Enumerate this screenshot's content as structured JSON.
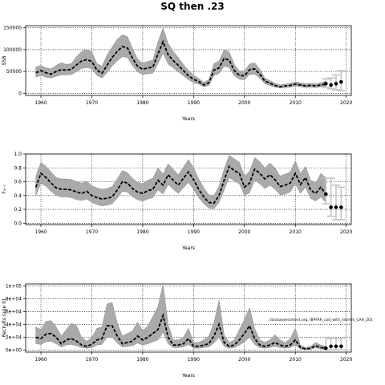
{
  "title": "SQ then .23",
  "annotation": "stockassessment.org, IBPFAR_cod_with_interim_CAA_201",
  "chart_data": [
    {
      "type": "line",
      "ylabel": "SSB",
      "xlabel": "Years",
      "xlim": [
        1957,
        2021
      ],
      "ylim": [
        -5000,
        155000
      ],
      "xticks": [
        1960,
        1970,
        1980,
        1990,
        2000,
        2010,
        2020
      ],
      "xtick_labels": [
        "1960",
        "1970",
        "1980",
        "1990",
        "2000",
        "2010",
        "2020"
      ],
      "yticks": [
        0,
        50000,
        100000,
        150000
      ],
      "ytick_labels": [
        "0",
        "50000",
        "100000",
        "150000"
      ],
      "grid": true,
      "years": [
        1959,
        1960,
        1961,
        1962,
        1963,
        1964,
        1965,
        1966,
        1967,
        1968,
        1969,
        1970,
        1971,
        1972,
        1973,
        1974,
        1975,
        1976,
        1977,
        1978,
        1979,
        1980,
        1981,
        1982,
        1983,
        1984,
        1985,
        1986,
        1987,
        1988,
        1989,
        1990,
        1991,
        1992,
        1993,
        1994,
        1995,
        1996,
        1997,
        1998,
        1999,
        2000,
        2001,
        2002,
        2003,
        2004,
        2005,
        2006,
        2007,
        2008,
        2009,
        2010,
        2011,
        2012,
        2013,
        2014,
        2015,
        2016
      ],
      "estimate": [
        47000,
        52000,
        47000,
        44000,
        50000,
        54000,
        53000,
        55000,
        65000,
        74000,
        77000,
        73000,
        53000,
        46000,
        64000,
        82000,
        96000,
        107000,
        104000,
        80000,
        62000,
        55000,
        58000,
        60000,
        90000,
        118000,
        88000,
        75000,
        64000,
        52000,
        40000,
        32000,
        27000,
        19000,
        24000,
        53000,
        58000,
        80000,
        76000,
        52000,
        41000,
        40000,
        54000,
        56000,
        44000,
        28000,
        23000,
        18000,
        15000,
        17000,
        18000,
        21000,
        19000,
        17000,
        18000,
        17000,
        19000,
        21000
      ],
      "upper": [
        60000,
        64000,
        58000,
        56000,
        64000,
        70000,
        66000,
        68000,
        84000,
        96000,
        100000,
        95000,
        68000,
        62000,
        88000,
        106000,
        124000,
        134000,
        130000,
        102000,
        78000,
        69000,
        73000,
        76000,
        118000,
        150000,
        114000,
        96000,
        82000,
        66000,
        52000,
        42000,
        34000,
        25000,
        31000,
        68000,
        74000,
        100000,
        95000,
        66000,
        51000,
        51000,
        67000,
        70000,
        55000,
        35000,
        29000,
        23000,
        19000,
        21000,
        23000,
        26000,
        24000,
        22000,
        23000,
        22000,
        24000,
        28000
      ],
      "lower": [
        37000,
        41000,
        37000,
        35000,
        39000,
        42000,
        42000,
        43000,
        50000,
        57000,
        59000,
        56000,
        41000,
        35000,
        47000,
        63000,
        74000,
        84000,
        82000,
        63000,
        49000,
        43000,
        45000,
        46000,
        68000,
        92000,
        67000,
        58000,
        49000,
        40000,
        31000,
        24000,
        21000,
        15000,
        18000,
        41000,
        45000,
        62000,
        59000,
        40000,
        32000,
        31000,
        43000,
        44000,
        35000,
        22000,
        18000,
        14000,
        12000,
        13000,
        14000,
        17000,
        15000,
        13000,
        14000,
        13000,
        15000,
        16000
      ],
      "forecast": {
        "years": [
          2016,
          2017,
          2018,
          2019
        ],
        "values": [
          22000,
          19000,
          22000,
          26000
        ],
        "upper": [
          33000,
          35000,
          42000,
          52000
        ],
        "lower": [
          14000,
          10000,
          8000,
          6000
        ]
      }
    },
    {
      "type": "line",
      "ylabel": "F₃₋₇",
      "xlabel": "Years",
      "xlim": [
        1957,
        2021
      ],
      "ylim": [
        -0.02,
        1.0
      ],
      "xticks": [
        1960,
        1970,
        1980,
        1990,
        2000,
        2010,
        2020
      ],
      "xtick_labels": [
        "1960",
        "1970",
        "1980",
        "1990",
        "2000",
        "2010",
        "2020"
      ],
      "yticks": [
        0.0,
        0.2,
        0.4,
        0.6,
        0.8,
        1.0
      ],
      "ytick_labels": [
        "0.0",
        "0.2",
        "0.4",
        "0.6",
        "0.8",
        "1.0"
      ],
      "grid": true,
      "years": [
        1959,
        1960,
        1961,
        1962,
        1963,
        1964,
        1965,
        1966,
        1967,
        1968,
        1969,
        1970,
        1971,
        1972,
        1973,
        1974,
        1975,
        1976,
        1977,
        1978,
        1979,
        1980,
        1981,
        1982,
        1983,
        1984,
        1985,
        1986,
        1987,
        1988,
        1989,
        1990,
        1991,
        1992,
        1993,
        1994,
        1995,
        1996,
        1997,
        1998,
        1999,
        2000,
        2001,
        2002,
        2003,
        2004,
        2005,
        2006,
        2007,
        2008,
        2009,
        2010,
        2011,
        2012,
        2013,
        2014,
        2015,
        2016
      ],
      "estimate": [
        0.52,
        0.72,
        0.66,
        0.58,
        0.51,
        0.49,
        0.49,
        0.48,
        0.45,
        0.43,
        0.46,
        0.4,
        0.37,
        0.35,
        0.36,
        0.38,
        0.48,
        0.6,
        0.58,
        0.5,
        0.45,
        0.43,
        0.47,
        0.49,
        0.62,
        0.55,
        0.7,
        0.62,
        0.55,
        0.65,
        0.74,
        0.63,
        0.49,
        0.38,
        0.3,
        0.29,
        0.4,
        0.62,
        0.82,
        0.76,
        0.72,
        0.52,
        0.58,
        0.78,
        0.72,
        0.64,
        0.7,
        0.63,
        0.53,
        0.55,
        0.58,
        0.72,
        0.56,
        0.66,
        0.48,
        0.43,
        0.52,
        0.42
      ],
      "upper": [
        0.68,
        0.88,
        0.82,
        0.74,
        0.66,
        0.64,
        0.64,
        0.63,
        0.6,
        0.58,
        0.61,
        0.54,
        0.51,
        0.49,
        0.5,
        0.53,
        0.64,
        0.76,
        0.73,
        0.65,
        0.59,
        0.57,
        0.62,
        0.65,
        0.8,
        0.71,
        0.86,
        0.78,
        0.7,
        0.81,
        0.92,
        0.8,
        0.64,
        0.51,
        0.41,
        0.4,
        0.53,
        0.78,
        0.98,
        0.93,
        0.88,
        0.68,
        0.75,
        0.95,
        0.89,
        0.8,
        0.87,
        0.8,
        0.68,
        0.71,
        0.74,
        0.9,
        0.72,
        0.82,
        0.62,
        0.58,
        0.72,
        0.66
      ],
      "lower": [
        0.4,
        0.58,
        0.53,
        0.46,
        0.4,
        0.38,
        0.38,
        0.37,
        0.34,
        0.33,
        0.35,
        0.3,
        0.27,
        0.25,
        0.26,
        0.28,
        0.36,
        0.46,
        0.45,
        0.38,
        0.34,
        0.32,
        0.35,
        0.37,
        0.48,
        0.42,
        0.56,
        0.49,
        0.43,
        0.51,
        0.59,
        0.49,
        0.37,
        0.28,
        0.22,
        0.21,
        0.3,
        0.48,
        0.66,
        0.61,
        0.57,
        0.4,
        0.44,
        0.62,
        0.57,
        0.5,
        0.55,
        0.49,
        0.41,
        0.42,
        0.45,
        0.57,
        0.43,
        0.52,
        0.36,
        0.32,
        0.38,
        0.3
      ],
      "forecast": {
        "years": [
          2016,
          2017,
          2018,
          2019
        ],
        "values": [
          0.42,
          0.23,
          0.23,
          0.23
        ],
        "upper": [
          0.65,
          0.65,
          0.55,
          0.52
        ],
        "lower": [
          0.28,
          0.1,
          0.05,
          0.05
        ]
      }
    },
    {
      "type": "line",
      "ylabel": "Recruits (age 0)",
      "xlabel": "Years",
      "xlim": [
        1957,
        2021
      ],
      "ylim": [
        -3000,
        103000
      ],
      "xticks": [
        1960,
        1970,
        1980,
        1990,
        2000,
        2010,
        2020
      ],
      "xtick_labels": [
        "1960",
        "1970",
        "1980",
        "1990",
        "2000",
        "2010",
        "2020"
      ],
      "yticks": [
        0,
        20000,
        40000,
        60000,
        80000,
        100000
      ],
      "ytick_labels": [
        "0e+00",
        "2e+04",
        "4e+04",
        "6e+04",
        "8e+04",
        "1e+05"
      ],
      "grid": true,
      "years": [
        1959,
        1960,
        1961,
        1962,
        1963,
        1964,
        1965,
        1966,
        1967,
        1968,
        1969,
        1970,
        1971,
        1972,
        1973,
        1974,
        1975,
        1976,
        1977,
        1978,
        1979,
        1980,
        1981,
        1982,
        1983,
        1984,
        1985,
        1986,
        1987,
        1988,
        1989,
        1990,
        1991,
        1992,
        1993,
        1994,
        1995,
        1996,
        1997,
        1998,
        1999,
        2000,
        2001,
        2002,
        2003,
        2004,
        2005,
        2006,
        2007,
        2008,
        2009,
        2010,
        2011,
        2012,
        2013,
        2014,
        2015,
        2016
      ],
      "estimate": [
        20000,
        18000,
        25000,
        26000,
        20000,
        10000,
        16000,
        18000,
        14000,
        8000,
        6000,
        9000,
        16000,
        18000,
        38000,
        38000,
        22000,
        10000,
        12000,
        14000,
        22000,
        16000,
        20000,
        26000,
        32000,
        54000,
        20000,
        8000,
        8000,
        10000,
        18000,
        6000,
        6000,
        8000,
        10000,
        22000,
        40000,
        12000,
        6000,
        8000,
        16000,
        26000,
        38000,
        18000,
        8000,
        6000,
        8000,
        12000,
        8000,
        6000,
        8000,
        16000,
        4000,
        2000,
        3000,
        7000,
        4000,
        3000
      ],
      "upper": [
        36000,
        32000,
        45000,
        46000,
        36000,
        22000,
        32000,
        42000,
        38000,
        20000,
        14000,
        20000,
        34000,
        36000,
        72000,
        74000,
        42000,
        22000,
        26000,
        30000,
        44000,
        30000,
        38000,
        52000,
        68000,
        102000,
        40000,
        16000,
        16000,
        20000,
        34000,
        12000,
        12000,
        16000,
        22000,
        42000,
        78000,
        24000,
        12000,
        16000,
        32000,
        48000,
        66000,
        34000,
        16000,
        12000,
        16000,
        24000,
        16000,
        12000,
        18000,
        34000,
        8000,
        4000,
        6000,
        12000,
        8000,
        6000
      ],
      "lower": [
        10000,
        9000,
        13000,
        14000,
        10000,
        5000,
        8000,
        9000,
        7000,
        4000,
        3000,
        4000,
        8000,
        9000,
        20000,
        20000,
        11000,
        5000,
        6000,
        7000,
        11000,
        8000,
        10000,
        13000,
        16000,
        28000,
        10000,
        4000,
        4000,
        5000,
        9000,
        3000,
        3000,
        4000,
        5000,
        11000,
        20000,
        6000,
        3000,
        4000,
        8000,
        13000,
        20000,
        9000,
        4000,
        3000,
        4000,
        6000,
        4000,
        3000,
        4000,
        8000,
        2000,
        1000,
        1500,
        3500,
        2000,
        1500
      ],
      "forecast": {
        "years": [
          2016,
          2017,
          2018,
          2019
        ],
        "values": [
          3000,
          6000,
          6000,
          6000
        ],
        "upper": [
          20000,
          18000,
          18000,
          18000
        ],
        "lower": [
          500,
          500,
          500,
          500
        ]
      }
    }
  ],
  "colors": {
    "band": "#aaaaaa",
    "line": "#000000",
    "forecast_band": "#c4c4c4",
    "grid": "#000000"
  }
}
